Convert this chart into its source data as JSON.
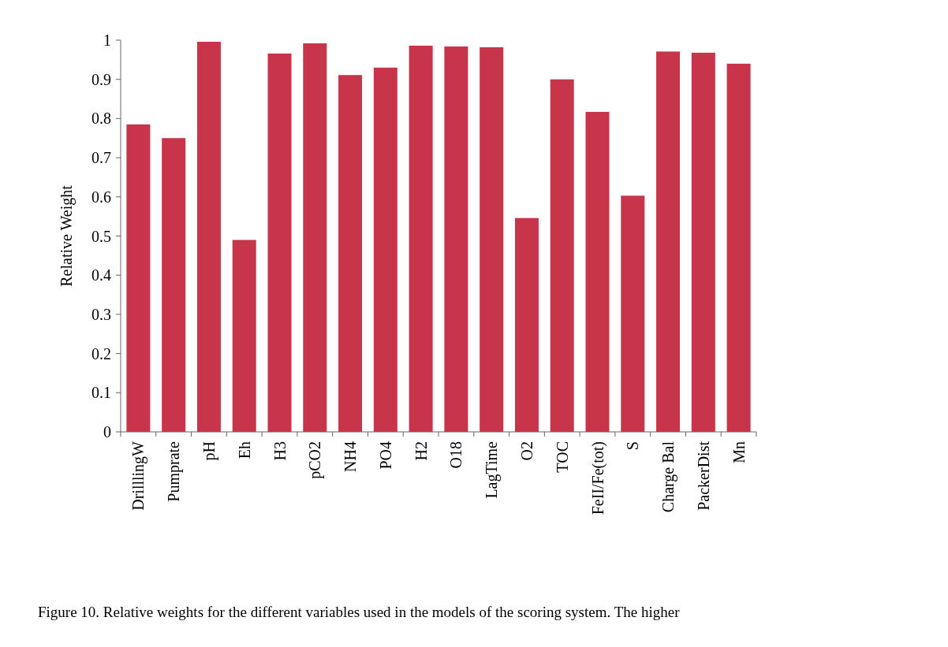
{
  "chart_data": {
    "type": "bar",
    "ylabel": "Relative Weight",
    "categories": [
      "DrilllingW",
      "Pumprate",
      "pH",
      "Eh",
      "H3",
      "pCO2",
      "NH4",
      "PO4",
      "H2",
      "O18",
      "LagTime",
      "O2",
      "TOC",
      "FeII/Fe(tot)",
      "S",
      "Charge Bal",
      "PackerDist",
      "Mn"
    ],
    "values": [
      0.785,
      0.75,
      0.996,
      0.49,
      0.966,
      0.992,
      0.911,
      0.93,
      0.986,
      0.984,
      0.982,
      0.546,
      0.9,
      0.817,
      0.603,
      0.971,
      0.968,
      0.94
    ],
    "color": "#c8344a",
    "ylim": [
      0,
      1
    ],
    "yticks": [
      0,
      0.1,
      0.2,
      0.3,
      0.4,
      0.5,
      0.6,
      0.7,
      0.8,
      0.9,
      1
    ],
    "grid": false,
    "annotations": [
      "Figure 10. Relative weights for the different variables used in the models of the scoring system. The higher"
    ]
  }
}
